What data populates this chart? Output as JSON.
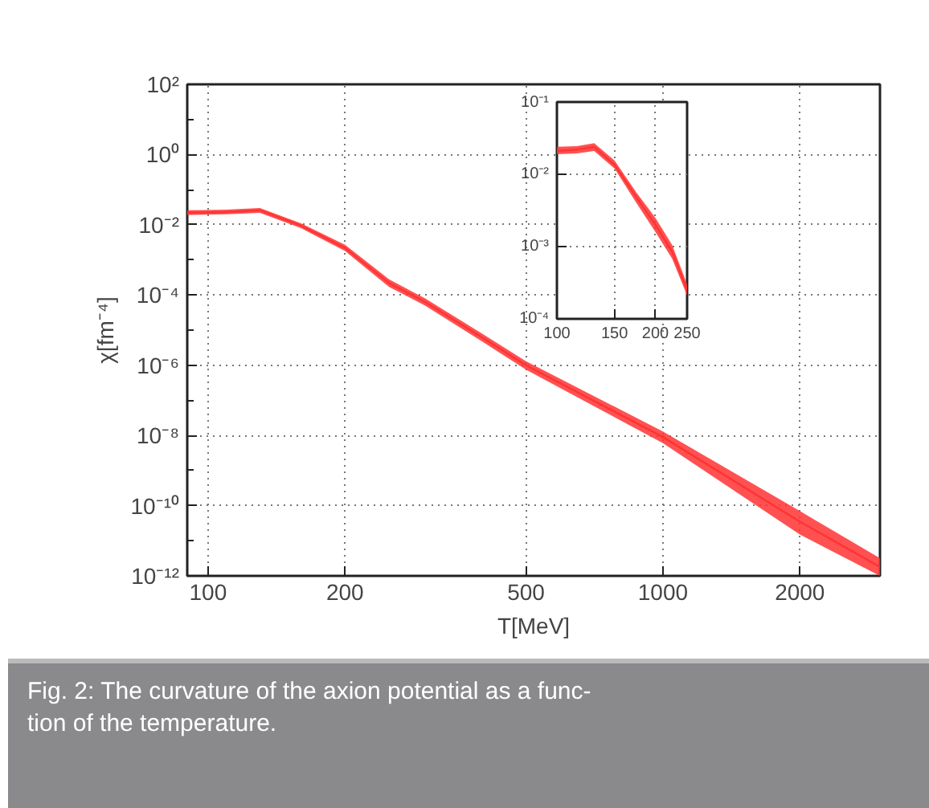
{
  "chart_data": [
    {
      "type": "line",
      "xlabel": "T[MeV]",
      "ylabel": "χ[fm⁻⁴]",
      "log": "xy",
      "grid": true,
      "xlim": [
        90,
        3000
      ],
      "ylim": [
        1e-12,
        100
      ],
      "xticks": [
        100,
        200,
        500,
        1000,
        2000
      ],
      "yticks": [
        {
          "value": 1e-12,
          "label": "10⁻¹²"
        },
        {
          "value": 1e-10,
          "label": "10⁻¹⁰"
        },
        {
          "value": 1e-08,
          "label": "10⁻⁸"
        },
        {
          "value": 1e-06,
          "label": "10⁻⁶"
        },
        {
          "value": 0.0001,
          "label": "10⁻⁴"
        },
        {
          "value": 0.01,
          "label": "10⁻²"
        },
        {
          "value": 1,
          "label": "10⁰"
        },
        {
          "value": 100,
          "label": "10²"
        }
      ],
      "series": [
        {
          "color": "#ff3333",
          "x": [
            90,
            110,
            130,
            160,
            200,
            250,
            300,
            400,
            500,
            1000,
            2000,
            3000
          ],
          "values": [
            0.022,
            0.023,
            0.026,
            0.0095,
            0.0022,
            0.00022,
            6.3e-05,
            6.2e-06,
            1e-06,
            9e-09,
            3.5e-11,
            1.8e-12
          ],
          "lower": [
            0.019,
            0.02,
            0.022,
            0.008,
            0.0018,
            0.00017,
            5e-05,
            4.8e-06,
            7.5e-07,
            6e-09,
            1.5e-11,
            1e-12
          ],
          "upper": [
            0.026,
            0.027,
            0.03,
            0.011,
            0.0027,
            0.00028,
            8e-05,
            8e-06,
            1.3e-06,
            1.3e-08,
            7e-11,
            3.2e-12
          ]
        }
      ],
      "annotations": [
        "Fig. 2: The curvature of the axion potential as a func-\ntion of the temperature."
      ]
    },
    {
      "type": "line",
      "log": "xy",
      "grid": true,
      "xlim": [
        100,
        250
      ],
      "ylim": [
        0.0001,
        0.1
      ],
      "xticks": [
        100,
        150,
        200,
        250
      ],
      "yticks": [
        {
          "value": 0.1,
          "label": "10⁻¹"
        },
        {
          "value": 0.01,
          "label": "10⁻²"
        },
        {
          "value": 0.001,
          "label": "10⁻³"
        },
        {
          "value": 0.0001,
          "label": "10⁻⁴"
        }
      ],
      "series": [
        {
          "color": "#ff3333",
          "x": [
            100,
            115,
            130,
            150,
            175,
            200,
            225,
            250
          ],
          "values": [
            0.021,
            0.022,
            0.024,
            0.0135,
            0.0048,
            0.002,
            0.00085,
            0.00025
          ],
          "lower": [
            0.019,
            0.0195,
            0.021,
            0.012,
            0.004,
            0.0016,
            0.00068,
            0.00021
          ],
          "upper": [
            0.024,
            0.0245,
            0.027,
            0.0155,
            0.0056,
            0.0025,
            0.00105,
            0.0003
          ]
        }
      ]
    }
  ]
}
